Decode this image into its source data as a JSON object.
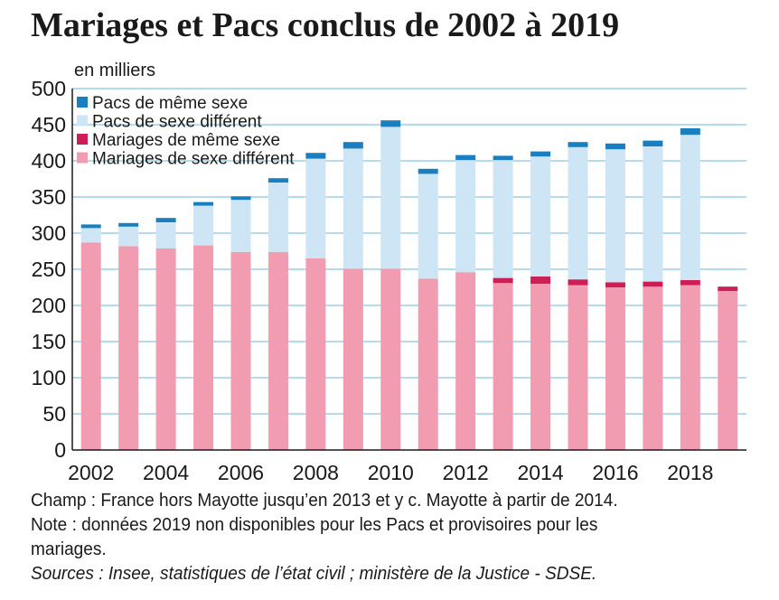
{
  "chart_data": {
    "type": "bar",
    "stacked": true,
    "title": "Mariages et Pacs conclus de 2002 à 2019",
    "unit_label": "en milliers",
    "categories": [
      "2002",
      "2003",
      "2004",
      "2005",
      "2006",
      "2007",
      "2008",
      "2009",
      "2010",
      "2011",
      "2012",
      "2013",
      "2014",
      "2015",
      "2016",
      "2017",
      "2018",
      "2019"
    ],
    "x_tick_labels": [
      "2002",
      "2004",
      "2006",
      "2008",
      "2010",
      "2012",
      "2014",
      "2016",
      "2018"
    ],
    "ylim": [
      0,
      500
    ],
    "y_ticks": [
      "0",
      "50",
      "100",
      "150",
      "200",
      "250",
      "300",
      "350",
      "400",
      "450",
      "500"
    ],
    "legend_position": "top-left",
    "series": [
      {
        "name": "Mariages de sexe différent",
        "color": "#f19cb0",
        "values": [
          287,
          282,
          279,
          283,
          274,
          274,
          265,
          251,
          251,
          237,
          246,
          231,
          230,
          228,
          225,
          226,
          228,
          220
        ]
      },
      {
        "name": "Mariages de même sexe",
        "color": "#cc1f55",
        "values": [
          0,
          0,
          0,
          0,
          0,
          0,
          0,
          0,
          0,
          0,
          0,
          7,
          10,
          8,
          7,
          7,
          7,
          6
        ]
      },
      {
        "name": "Pacs de sexe différent",
        "color": "#cde5f5",
        "values": [
          20,
          27,
          36,
          55,
          72,
          96,
          138,
          166,
          196,
          145,
          155,
          163,
          166,
          183,
          184,
          187,
          201,
          0
        ]
      },
      {
        "name": "Pacs de même sexe",
        "color": "#1a7fc0",
        "values": [
          5,
          5,
          6,
          5,
          5,
          6,
          8,
          9,
          9,
          7,
          7,
          6,
          7,
          7,
          8,
          8,
          9,
          0
        ]
      }
    ]
  },
  "notes": {
    "champ": "Champ : France hors Mayotte jusqu’en 2013 et y c. Mayotte à partir de 2014.",
    "note_line1": "Note : données 2019 non disponibles pour les Pacs et provisoires pour les",
    "note_line2": "mariages.",
    "sources": "Sources : Insee, statistiques de l’état civil ; ministère de la Justice - SDSE."
  }
}
